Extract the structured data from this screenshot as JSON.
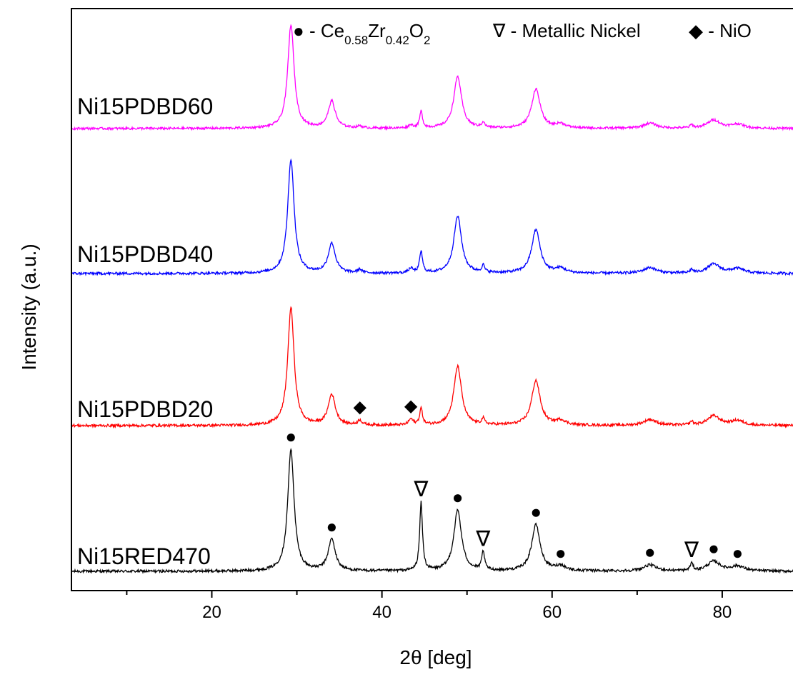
{
  "chart_data": {
    "type": "line",
    "xlabel": "2θ [deg]",
    "ylabel": "Intensity (a.u.)",
    "xlim": [
      3.5,
      90
    ],
    "x_ticks": [
      20,
      40,
      60,
      80
    ],
    "x_minor_ticks": [
      10,
      30,
      50,
      70,
      90
    ],
    "y_ticks_shown": false,
    "grid": false,
    "legend": {
      "placement": "top-right",
      "entries": [
        {
          "marker": "●",
          "marker_name": "filled-circle",
          "text_prefix": " - Ce",
          "sub1": "0.58",
          "mid": "Zr",
          "sub2": "0.42",
          "text_suffix": "O",
          "sub3": "2"
        },
        {
          "marker": "∇",
          "marker_name": "open-triangle-down",
          "text": " - Metallic Nickel"
        },
        {
          "marker": "◆",
          "marker_name": "filled-diamond",
          "text": " - NiO"
        }
      ]
    },
    "peaks": [
      {
        "pos": 29.3,
        "height": 1.0,
        "width": 0.45
      },
      {
        "pos": 34.1,
        "height": 0.26,
        "width": 0.5
      },
      {
        "pos": 48.9,
        "height": 0.5,
        "width": 0.55
      },
      {
        "pos": 58.1,
        "height": 0.38,
        "width": 0.6
      },
      {
        "pos": 61.0,
        "height": 0.04,
        "width": 0.7
      },
      {
        "pos": 71.5,
        "height": 0.05,
        "width": 0.9
      },
      {
        "pos": 79.0,
        "height": 0.08,
        "width": 0.9
      },
      {
        "pos": 81.8,
        "height": 0.04,
        "width": 0.9
      }
    ],
    "series": [
      {
        "name": "Ni15RED470",
        "color": "#000000",
        "baseline_offset": 0.0,
        "nickel_peaks": [
          [
            44.6,
            0.56
          ],
          [
            51.9,
            0.15
          ],
          [
            76.4,
            0.06
          ]
        ],
        "nio_peaks": []
      },
      {
        "name": "Ni15PDBD20",
        "color": "#ff0000",
        "baseline_offset": 1.0,
        "nickel_peaks": [
          [
            44.6,
            0.14
          ],
          [
            51.9,
            0.05
          ],
          [
            76.4,
            0.03
          ]
        ],
        "nio_peaks": [
          [
            37.4,
            0.04
          ],
          [
            43.4,
            0.05
          ]
        ]
      },
      {
        "name": "Ni15PDBD40",
        "color": "#0000ff",
        "baseline_offset": 2.0,
        "nickel_peaks": [
          [
            44.6,
            0.19
          ],
          [
            51.9,
            0.06
          ],
          [
            76.4,
            0.03
          ]
        ],
        "nio_peaks": [
          [
            37.4,
            0.03
          ],
          [
            43.4,
            0.04
          ]
        ]
      },
      {
        "name": "Ni15PDBD60",
        "color": "#ff00ff",
        "baseline_offset": 3.0,
        "nickel_peaks": [
          [
            44.6,
            0.16
          ],
          [
            51.9,
            0.05
          ],
          [
            76.4,
            0.03
          ]
        ],
        "nio_peaks": [
          [
            37.4,
            0.02
          ],
          [
            43.4,
            0.03
          ]
        ]
      }
    ],
    "annotations": [
      {
        "series": "Ni15RED470",
        "marker": "●",
        "type": "ceria",
        "x": 29.3
      },
      {
        "series": "Ni15RED470",
        "marker": "●",
        "type": "ceria",
        "x": 34.1
      },
      {
        "series": "Ni15RED470",
        "marker": "●",
        "type": "ceria",
        "x": 48.9
      },
      {
        "series": "Ni15RED470",
        "marker": "●",
        "type": "ceria",
        "x": 58.1
      },
      {
        "series": "Ni15RED470",
        "marker": "●",
        "type": "ceria",
        "x": 61.0
      },
      {
        "series": "Ni15RED470",
        "marker": "●",
        "type": "ceria",
        "x": 71.5
      },
      {
        "series": "Ni15RED470",
        "marker": "●",
        "type": "ceria",
        "x": 79.0
      },
      {
        "series": "Ni15RED470",
        "marker": "●",
        "type": "ceria",
        "x": 81.8
      },
      {
        "series": "Ni15RED470",
        "marker": "∇",
        "type": "nickel",
        "x": 44.6
      },
      {
        "series": "Ni15RED470",
        "marker": "∇",
        "type": "nickel",
        "x": 51.9
      },
      {
        "series": "Ni15RED470",
        "marker": "∇",
        "type": "nickel",
        "x": 76.4
      },
      {
        "series": "Ni15PDBD20",
        "marker": "◆",
        "type": "nio",
        "x": 37.4
      },
      {
        "series": "Ni15PDBD20",
        "marker": "◆",
        "type": "nio",
        "x": 43.4
      }
    ]
  }
}
